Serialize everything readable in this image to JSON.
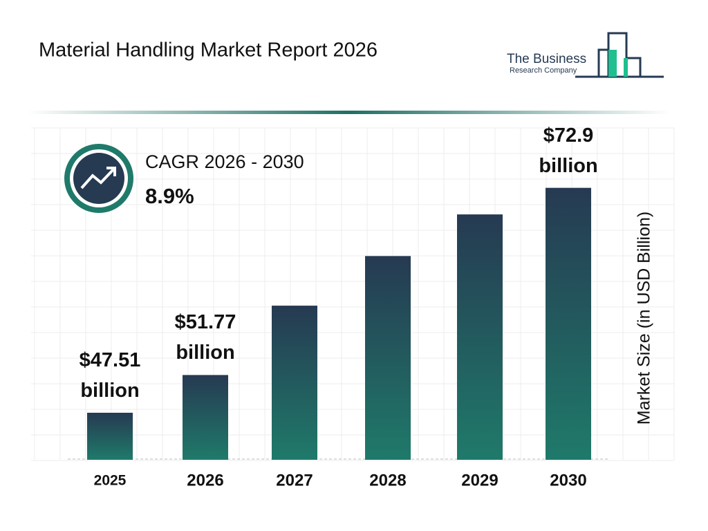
{
  "chart_data": {
    "type": "bar",
    "title": "Material Handling Market Report 2026",
    "brand": [
      "The Business",
      "Research Company"
    ],
    "cagr_label": "CAGR 2026 - 2030",
    "cagr_value": "8.9%",
    "y_label": "Market Size (in USD Billion)",
    "categories": [
      "2025",
      "2026",
      "2027",
      "2028",
      "2029",
      "2030"
    ],
    "values": [
      47.51,
      51.77,
      59.6,
      65.2,
      69.9,
      72.9
    ],
    "value_labels": [
      "$47.51 billion",
      "$51.77 billion",
      null,
      null,
      null,
      "$72.9 billion"
    ],
    "ylim": [
      42.2,
      86.3
    ],
    "color": [
      "#263a52",
      "#1f7a6a"
    ]
  }
}
